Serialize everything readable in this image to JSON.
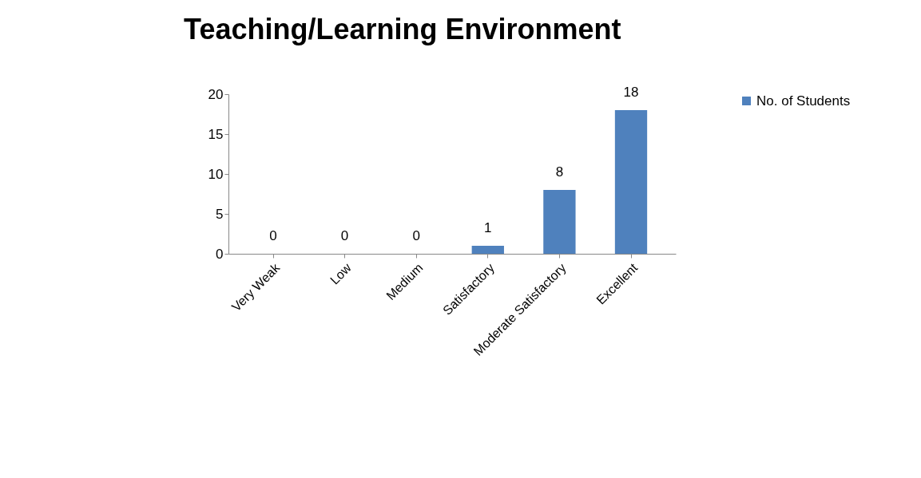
{
  "chart_data": {
    "type": "bar",
    "title": "Teaching/Learning Environment",
    "categories": [
      "Very Weak",
      "Low",
      "Medium",
      "Satisfactory",
      "Moderate Satisfactory",
      "Excellent"
    ],
    "series": [
      {
        "name": "No. of Students",
        "color": "#4f81bd",
        "values": [
          0,
          0,
          0,
          1,
          8,
          18
        ]
      }
    ],
    "ylim": [
      0,
      20
    ],
    "yticks": [
      0,
      5,
      10,
      15,
      20
    ],
    "data_labels": true,
    "legend": "right"
  }
}
